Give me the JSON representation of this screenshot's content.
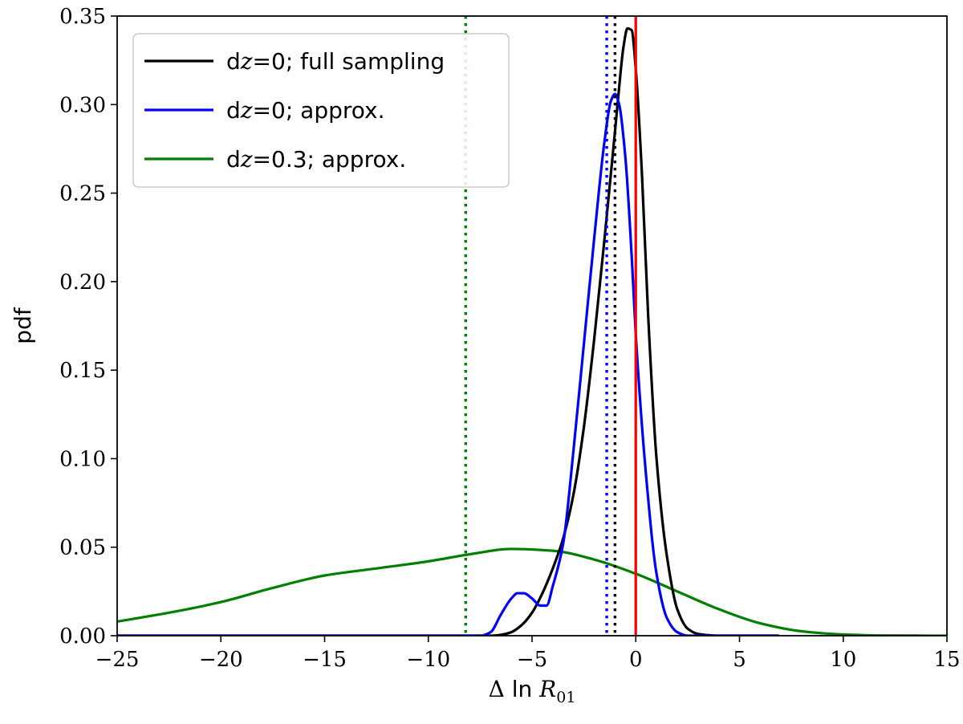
{
  "chart_data": {
    "type": "line",
    "title": "",
    "xlabel_parts": {
      "delta": "Δ",
      "ln": "ln",
      "var": "R",
      "sub": "01"
    },
    "ylabel": "pdf",
    "xlim": [
      -25,
      15
    ],
    "ylim": [
      0,
      0.35
    ],
    "xticks": [
      -25,
      -20,
      -15,
      -10,
      -5,
      0,
      5,
      10,
      15
    ],
    "xtick_labels": [
      "−25",
      "−20",
      "−15",
      "−10",
      "−5",
      "0",
      "5",
      "10",
      "15"
    ],
    "yticks": [
      0,
      0.05,
      0.1,
      0.15,
      0.2,
      0.25,
      0.3,
      0.35
    ],
    "ytick_labels": [
      "0.00",
      "0.05",
      "0.10",
      "0.15",
      "0.20",
      "0.25",
      "0.30",
      "0.35"
    ],
    "legend_position": "top-left",
    "series": [
      {
        "name": "dz=0; full sampling",
        "legend_prefix": "d",
        "legend_var": "z",
        "legend_rest": "=0; full sampling",
        "color": "#000000",
        "x": [
          -25,
          -10,
          -7,
          -6.5,
          -6,
          -5.5,
          -5,
          -4.5,
          -4,
          -3.5,
          -3,
          -2.5,
          -2,
          -1.5,
          -1,
          -0.8,
          -0.6,
          -0.4,
          -0.2,
          0,
          0.3,
          0.6,
          1,
          1.5,
          2,
          2.5,
          3,
          4,
          5,
          6.9
        ],
        "values": [
          0,
          0,
          0,
          0.0005,
          0.002,
          0.006,
          0.013,
          0.024,
          0.038,
          0.055,
          0.08,
          0.118,
          0.168,
          0.225,
          0.285,
          0.31,
          0.332,
          0.343,
          0.342,
          0.32,
          0.26,
          0.18,
          0.1,
          0.045,
          0.015,
          0.004,
          0.001,
          0,
          0,
          0
        ]
      },
      {
        "name": "dz=0; approx.",
        "legend_prefix": "d",
        "legend_var": "z",
        "legend_rest": "=0; approx.",
        "color": "#0000ff",
        "x": [
          -25,
          -10,
          -7.5,
          -7,
          -6.5,
          -6,
          -5.7,
          -5.4,
          -5,
          -4.6,
          -4.3,
          -4,
          -3.5,
          -3,
          -2.5,
          -2,
          -1.5,
          -1.2,
          -1,
          -0.8,
          -0.5,
          -0.2,
          0,
          0.5,
          1,
          1.5,
          2,
          2.5,
          3,
          5,
          6.9
        ],
        "values": [
          0,
          0,
          0,
          0.002,
          0.012,
          0.021,
          0.024,
          0.024,
          0.021,
          0.017,
          0.017,
          0.028,
          0.052,
          0.105,
          0.165,
          0.225,
          0.28,
          0.302,
          0.306,
          0.3,
          0.27,
          0.215,
          0.17,
          0.09,
          0.035,
          0.01,
          0.002,
          0,
          0,
          0,
          0
        ]
      },
      {
        "name": "dz=0.3; approx.",
        "legend_prefix": "d",
        "legend_var": "z",
        "legend_rest": "=0.3; approx.",
        "color": "#007f00",
        "x": [
          -25,
          -22.5,
          -20,
          -17.5,
          -15,
          -12.5,
          -10,
          -8,
          -6,
          -4,
          -2,
          0,
          2,
          4,
          6,
          8,
          10,
          12,
          15
        ],
        "values": [
          0.008,
          0.013,
          0.019,
          0.027,
          0.034,
          0.038,
          0.042,
          0.046,
          0.049,
          0.048,
          0.043,
          0.035,
          0.025,
          0.015,
          0.007,
          0.0025,
          0.0007,
          0.0001,
          0
        ]
      }
    ],
    "vertical_lines": [
      {
        "name": "dz=0.3 approx. median",
        "x": -8.2,
        "color": "#007f00",
        "style": "dotted"
      },
      {
        "name": "dz=0 approx. median",
        "x": -1.4,
        "color": "#0000ff",
        "style": "dotted"
      },
      {
        "name": "dz=0 full sampling median",
        "x": -1.0,
        "color": "#000000",
        "style": "dotted"
      },
      {
        "name": "true value",
        "x": 0,
        "color": "#ff0000",
        "style": "solid"
      }
    ]
  }
}
